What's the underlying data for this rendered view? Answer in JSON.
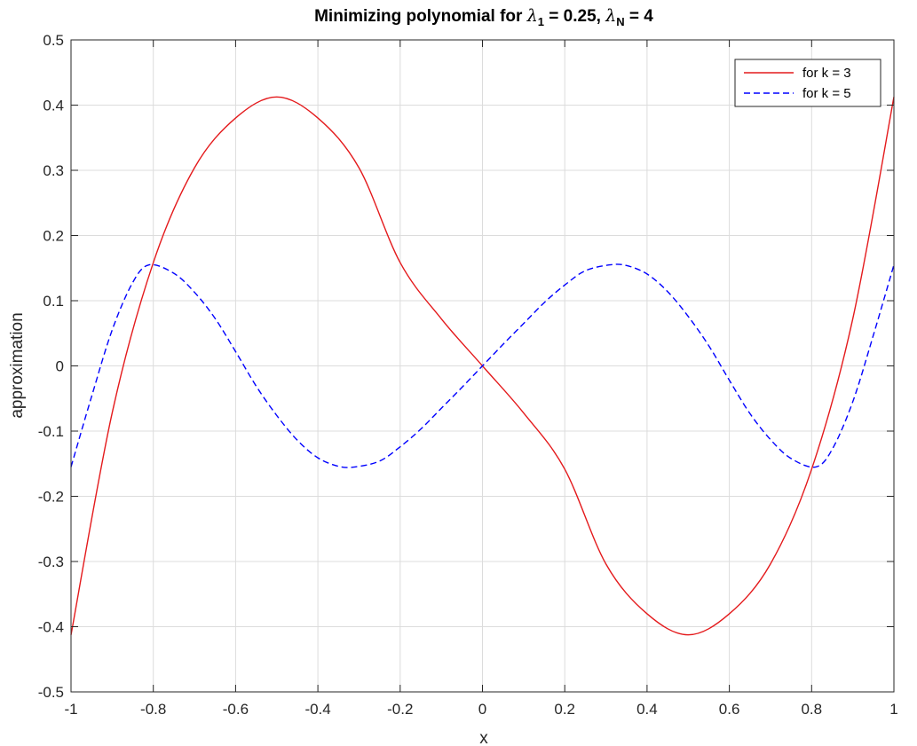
{
  "chart_data": {
    "type": "line",
    "title": {
      "prefix": "Minimizing polynomial for ",
      "lambda1_symbol": "λ",
      "lambda1_sub": "1",
      "lambda1_rest": " = 0.25, ",
      "lambdaN_symbol": "λ",
      "lambdaN_sub": "N",
      "lambdaN_rest": " = 4"
    },
    "xlabel": "x",
    "ylabel": "approximation",
    "xlim": [
      -1,
      1
    ],
    "ylim": [
      -0.5,
      0.5
    ],
    "xticks": [
      -1,
      -0.8,
      -0.6,
      -0.4,
      -0.2,
      0,
      0.2,
      0.4,
      0.6,
      0.8,
      1
    ],
    "xtick_labels": [
      "-1",
      "-0.8",
      "-0.6",
      "-0.4",
      "-0.2",
      "0",
      "0.2",
      "0.4",
      "0.6",
      "0.8",
      "1"
    ],
    "yticks": [
      -0.5,
      -0.4,
      -0.3,
      -0.2,
      -0.1,
      0,
      0.1,
      0.2,
      0.3,
      0.4,
      0.5
    ],
    "ytick_labels": [
      "-0.5",
      "-0.4",
      "-0.3",
      "-0.2",
      "-0.1",
      "0",
      "0.1",
      "0.2",
      "0.3",
      "0.4",
      "0.5"
    ],
    "grid": true,
    "legend_position": "top-right",
    "series": [
      {
        "name": "for k = 3",
        "color": "#e41a1c",
        "style": "solid",
        "x": [
          -1,
          -0.9,
          -0.8,
          -0.7,
          -0.6,
          -0.5,
          -0.4,
          -0.3,
          -0.2,
          -0.1,
          0,
          0.1,
          0.2,
          0.3,
          0.4,
          0.5,
          0.6,
          0.7,
          0.8,
          0.9,
          1
        ],
        "y": [
          -0.4125,
          -0.0722,
          0.1584,
          0.3037,
          0.3802,
          0.4125,
          0.3802,
          0.3037,
          0.1584,
          0.0722,
          0,
          -0.0722,
          -0.1584,
          -0.3037,
          -0.3802,
          -0.4125,
          -0.3802,
          -0.3037,
          -0.1584,
          0.0722,
          0.4125
        ]
      },
      {
        "name": "for k = 5",
        "color": "#0000ff",
        "style": "dashed",
        "x": [
          -1,
          -0.95,
          -0.9,
          -0.85,
          -0.81,
          -0.75,
          -0.7,
          -0.65,
          -0.6,
          -0.55,
          -0.5,
          -0.45,
          -0.4,
          -0.35,
          -0.31,
          -0.25,
          -0.2,
          -0.15,
          -0.1,
          -0.05,
          0,
          0.05,
          0.1,
          0.15,
          0.2,
          0.25,
          0.31,
          0.35,
          0.4,
          0.45,
          0.5,
          0.55,
          0.6,
          0.65,
          0.7,
          0.75,
          0.81,
          0.85,
          0.9,
          0.95,
          1
        ],
        "y": [
          -0.155,
          -0.047,
          0.055,
          0.128,
          0.155,
          0.142,
          0.113,
          0.073,
          0.022,
          -0.031,
          -0.076,
          -0.114,
          -0.141,
          -0.154,
          -0.155,
          -0.146,
          -0.124,
          -0.097,
          -0.065,
          -0.033,
          0,
          0.033,
          0.065,
          0.097,
          0.124,
          0.146,
          0.155,
          0.154,
          0.141,
          0.114,
          0.076,
          0.031,
          -0.022,
          -0.073,
          -0.113,
          -0.142,
          -0.155,
          -0.128,
          -0.055,
          0.047,
          0.155
        ]
      }
    ]
  }
}
